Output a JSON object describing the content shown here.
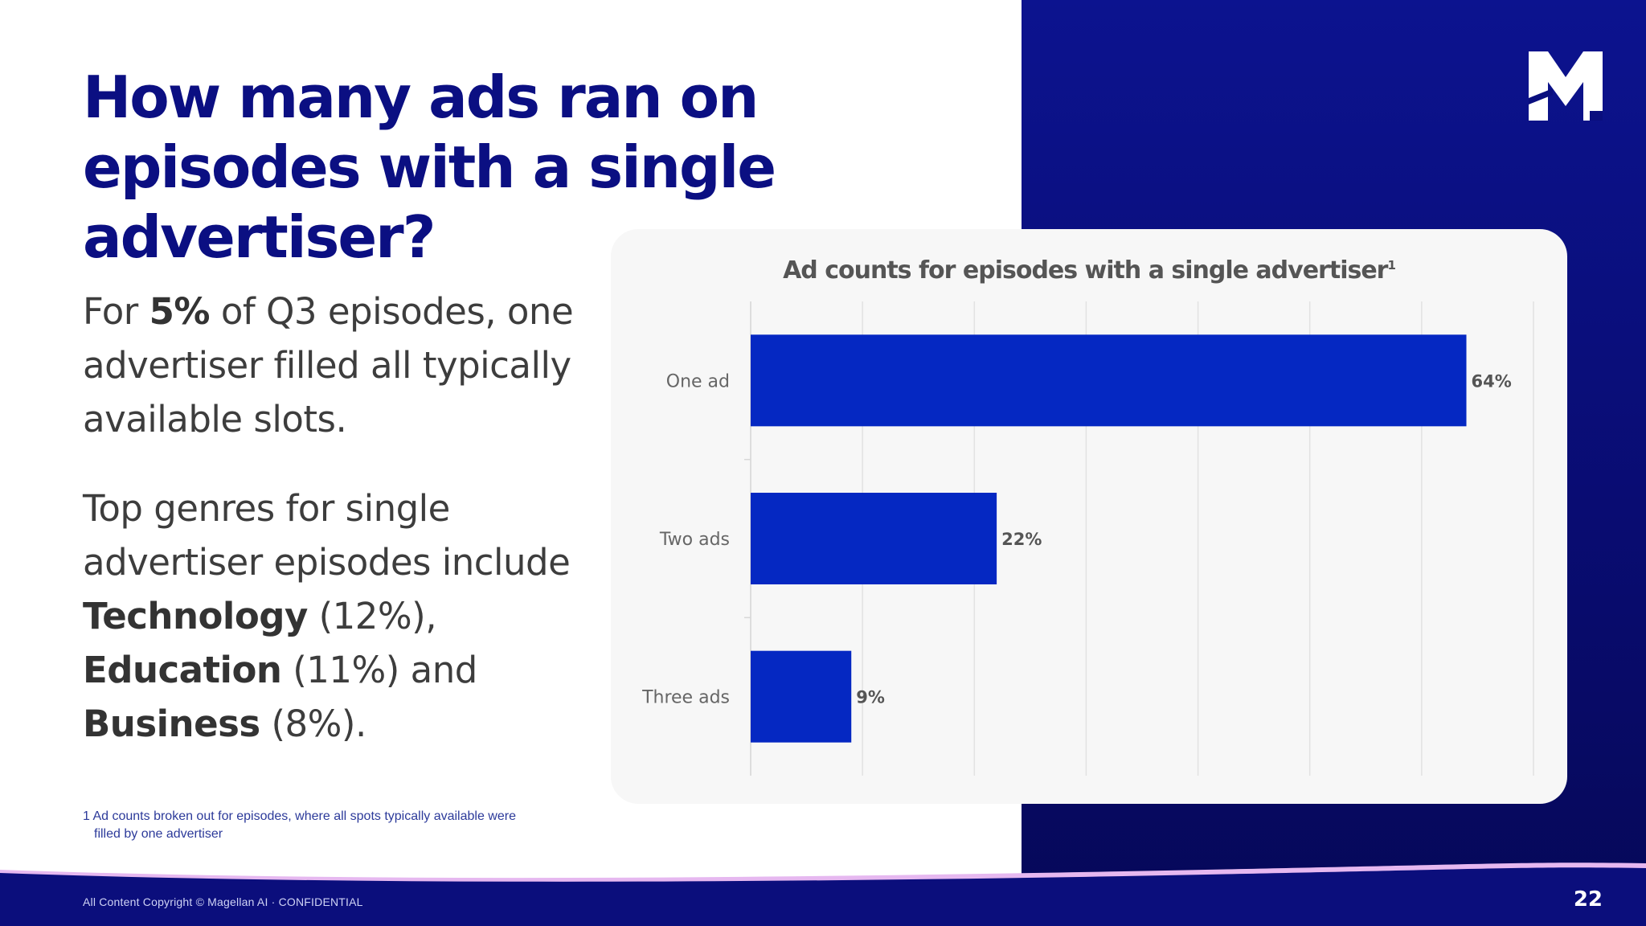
{
  "headline": "How many ads ran on episodes with a single advertiser?",
  "paragraph1": {
    "before": "For ",
    "bold": "5%",
    "after": " of Q3 episodes, one advertiser filled all typically available slots."
  },
  "paragraph2": {
    "intro": "Top genres for single advertiser episodes include ",
    "genres": [
      {
        "name": "Technology",
        "share": " (12%), "
      },
      {
        "name": "Education",
        "share": " (11%) and "
      },
      {
        "name": "Business",
        "share": " (8%)."
      }
    ]
  },
  "footnote": {
    "line1": "1 Ad counts broken out for episodes, where all spots typically available were",
    "line2": "filled by one advertiser"
  },
  "footer": {
    "copyright": "All Content Copyright © Magellan AI · CONFIDENTIAL",
    "page_number": "22"
  },
  "logo": {
    "icon": "magellan-m-logo-icon"
  },
  "colors": {
    "bar": "#0528c2",
    "headline": "#0b0f82",
    "panel": "#0a0e7e",
    "accent_wave": "#e6b8f0"
  },
  "chart_data": {
    "type": "bar",
    "orientation": "horizontal",
    "title": "Ad counts for episodes with a single advertiser",
    "title_footnote_marker": "1",
    "categories": [
      "One ad",
      "Two ads",
      "Three ads"
    ],
    "values": [
      64,
      22,
      9
    ],
    "value_labels": [
      "64%",
      "22%",
      "9%"
    ],
    "unit": "%",
    "xlim": [
      0,
      70
    ],
    "x_gridlines": [
      0,
      10,
      20,
      30,
      40,
      50,
      60,
      70
    ],
    "xlabel": "",
    "ylabel": "",
    "grid": true,
    "legend": "none"
  }
}
